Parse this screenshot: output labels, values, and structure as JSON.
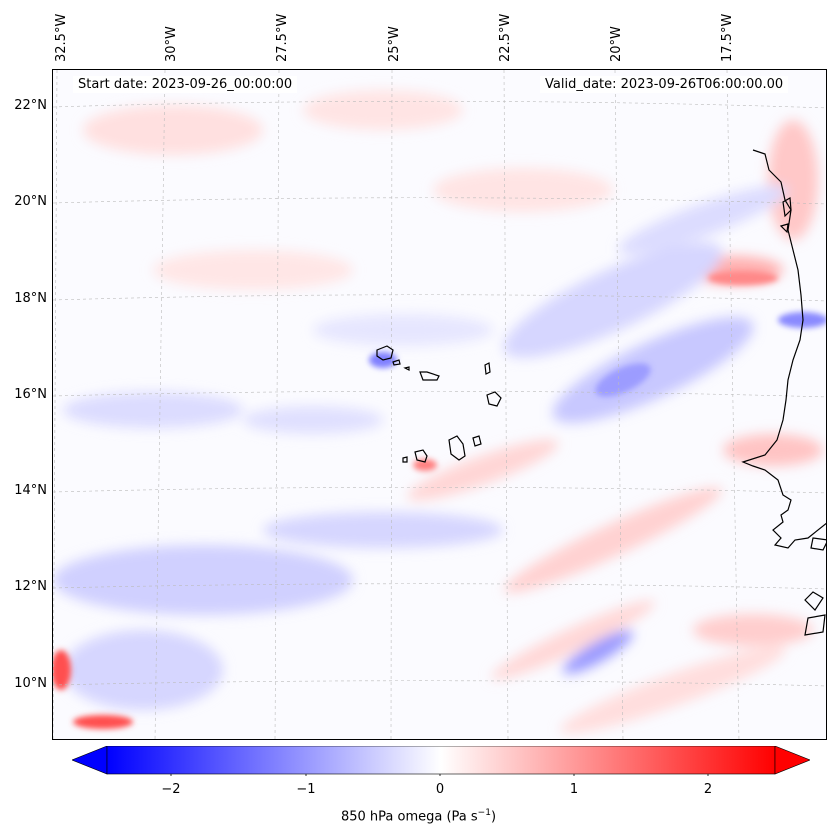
{
  "map": {
    "lon_labels": [
      "32.5°W",
      "30°W",
      "27.5°W",
      "25°W",
      "22.5°W",
      "20°W",
      "17.5°W"
    ],
    "lat_labels": [
      "22°N",
      "20°N",
      "18°N",
      "16°N",
      "14°N",
      "12°N",
      "10°N"
    ],
    "start_date": "Start date: 2023-09-26_00:00:00",
    "valid_date": "Valid_date: 2023-09-26T06:00:00.00"
  },
  "colorbar": {
    "ticks": [
      "−2",
      "−1",
      "0",
      "1",
      "2"
    ],
    "label": "850 hPa omega (Pa s",
    "label_sup": "−1",
    "label_end": ")",
    "min": -2.6,
    "max": 2.6,
    "colormap": "bwr",
    "extend": "both"
  },
  "colors": {
    "negative": "#0000ff",
    "zero": "#ffffff",
    "positive": "#ff0000",
    "coastline": "#000000",
    "gridline": "#bbbbbb"
  }
}
